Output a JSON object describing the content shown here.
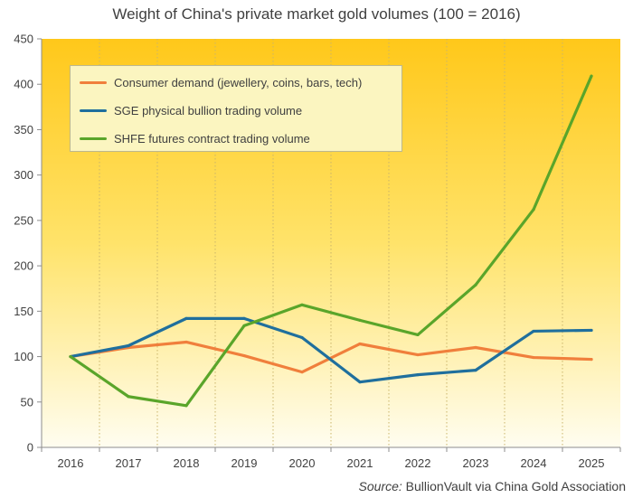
{
  "chart_data": {
    "type": "line",
    "title": "Weight of China's private market gold volumes (100 = 2016)",
    "xlabel": "",
    "ylabel": "",
    "categories": [
      "2016",
      "2017",
      "2018",
      "2019",
      "2020",
      "2021",
      "2022",
      "2023",
      "2024",
      "2025"
    ],
    "ylim": [
      0,
      450
    ],
    "yticks": [
      0,
      50,
      100,
      150,
      200,
      250,
      300,
      350,
      400,
      450
    ],
    "grid": "vertical dotted",
    "legend_position": "top-left",
    "series": [
      {
        "name": "Consumer demand (jewellery, coins, bars, tech)",
        "color": "#f07f3c",
        "values": [
          100,
          110,
          116,
          101,
          83,
          114,
          102,
          110,
          99,
          97
        ]
      },
      {
        "name": "SGE physical bullion trading volume",
        "color": "#1f6f9d",
        "values": [
          100,
          112,
          142,
          142,
          121,
          72,
          80,
          85,
          128,
          129
        ]
      },
      {
        "name": "SHFE futures contract trading volume",
        "color": "#5aa52a",
        "values": [
          100,
          56,
          46,
          134,
          157,
          140,
          124,
          179,
          262,
          409
        ]
      }
    ]
  },
  "source": {
    "label": "Source:",
    "text": "BullionVault via China Gold Association"
  }
}
